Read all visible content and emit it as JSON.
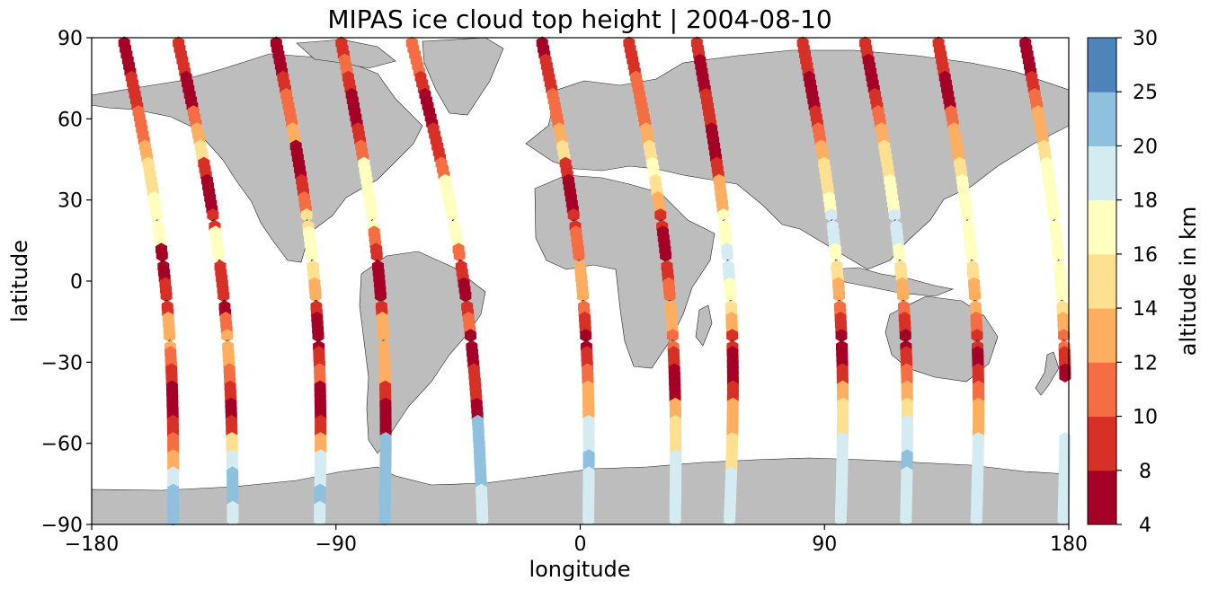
{
  "chart_data": {
    "type": "scatter",
    "title": "MIPAS ice cloud top height | 2004-08-10",
    "xlabel": "longitude",
    "ylabel": "latitude",
    "xlim": [
      -180,
      180
    ],
    "ylim": [
      -90,
      90
    ],
    "xticks": [
      -180,
      -90,
      0,
      90,
      180
    ],
    "yticks": [
      -90,
      -60,
      -30,
      0,
      30,
      60,
      90
    ],
    "grid": false,
    "land_color": "#bdbdbd",
    "colorbar": {
      "label": "altitude in km",
      "ticks": [
        4,
        8,
        10,
        12,
        14,
        16,
        18,
        20,
        25,
        30
      ],
      "bins": [
        {
          "from": 4,
          "to": 8,
          "color": "#a50026"
        },
        {
          "from": 8,
          "to": 10,
          "color": "#d73027"
        },
        {
          "from": 10,
          "to": 12,
          "color": "#f46d43"
        },
        {
          "from": 12,
          "to": 14,
          "color": "#fdae61"
        },
        {
          "from": 14,
          "to": 16,
          "color": "#fee090"
        },
        {
          "from": 16,
          "to": 18,
          "color": "#ffffbf"
        },
        {
          "from": 18,
          "to": 20,
          "color": "#e0f3f8"
        },
        {
          "from": 20,
          "to": 25,
          "color": "#abd9e9"
        },
        {
          "from": 25,
          "to": 30,
          "color": "#74add1"
        }
      ],
      "bin_colors_display": [
        "#a50026",
        "#d73027",
        "#f46d43",
        "#fdae61",
        "#fee090",
        "#ffffbf",
        "#d4ebf2",
        "#8fc1de",
        "#4f84ba",
        "#313695"
      ]
    },
    "tracks": [
      {
        "lon_north": -168,
        "lon_south": -150,
        "profile": [
          7,
          7,
          9,
          9,
          11,
          11,
          13,
          15,
          15,
          16,
          16,
          16,
          7,
          7,
          9,
          9,
          13,
          13,
          11,
          9,
          7,
          7,
          9,
          11,
          13,
          19,
          21,
          21
        ]
      },
      {
        "lon_north": -148,
        "lon_south": -128,
        "profile": [
          9,
          9,
          7,
          7,
          11,
          13,
          15,
          9,
          7,
          7,
          9,
          16,
          16,
          9,
          9,
          7,
          11,
          13,
          13,
          11,
          9,
          7,
          9,
          15,
          19,
          21,
          21,
          19
        ]
      },
      {
        "lon_north": -112,
        "lon_south": -96,
        "profile": [
          7,
          7,
          9,
          11,
          11,
          13,
          7,
          7,
          9,
          11,
          15,
          16,
          16,
          15,
          13,
          9,
          7,
          7,
          9,
          11,
          7,
          7,
          9,
          13,
          19,
          19,
          21,
          19
        ]
      },
      {
        "lon_north": -88,
        "lon_south": -72,
        "profile": [
          9,
          11,
          9,
          7,
          7,
          9,
          11,
          16,
          16,
          16,
          16,
          11,
          9,
          7,
          7,
          9,
          13,
          13,
          13,
          13,
          9,
          7,
          7,
          21,
          23,
          23,
          21,
          21
        ]
      },
      {
        "lon_north": -62,
        "lon_south": -36,
        "profile": [
          11,
          11,
          9,
          7,
          7,
          9,
          9,
          11,
          16,
          16,
          16,
          16,
          11,
          9,
          7,
          9,
          11,
          7,
          7,
          9,
          9,
          7,
          21,
          23,
          23,
          21,
          19,
          19
        ]
      },
      {
        "lon_north": -14,
        "lon_south": 3,
        "profile": [
          7,
          9,
          9,
          11,
          11,
          13,
          15,
          9,
          7,
          7,
          9,
          11,
          11,
          13,
          13,
          11,
          9,
          7,
          9,
          11,
          13,
          13,
          19,
          19,
          21,
          19,
          19,
          19
        ]
      },
      {
        "lon_north": 18,
        "lon_south": 35,
        "profile": [
          9,
          9,
          11,
          11,
          11,
          13,
          15,
          16,
          15,
          13,
          9,
          7,
          7,
          9,
          11,
          13,
          13,
          11,
          9,
          7,
          7,
          13,
          15,
          15,
          19,
          19,
          19,
          19
        ]
      },
      {
        "lon_north": 43,
        "lon_south": 55,
        "profile": [
          9,
          7,
          7,
          9,
          9,
          7,
          7,
          9,
          13,
          13,
          16,
          16,
          19,
          19,
          16,
          15,
          13,
          9,
          7,
          7,
          9,
          13,
          13,
          15,
          15,
          19,
          19,
          19
        ]
      },
      {
        "lon_north": 82,
        "lon_south": 96,
        "profile": [
          9,
          9,
          7,
          7,
          9,
          11,
          13,
          15,
          15,
          16,
          19,
          19,
          16,
          15,
          13,
          11,
          9,
          7,
          7,
          9,
          13,
          15,
          15,
          19,
          19,
          19,
          19,
          19
        ]
      },
      {
        "lon_north": 105,
        "lon_south": 120,
        "profile": [
          9,
          7,
          7,
          9,
          11,
          13,
          15,
          15,
          16,
          16,
          19,
          19,
          16,
          15,
          13,
          11,
          9,
          7,
          9,
          11,
          13,
          15,
          19,
          19,
          21,
          19,
          19,
          19
        ]
      },
      {
        "lon_north": 132,
        "lon_south": 146,
        "profile": [
          9,
          9,
          7,
          7,
          11,
          13,
          13,
          15,
          16,
          16,
          16,
          16,
          16,
          15,
          13,
          13,
          11,
          9,
          7,
          9,
          11,
          13,
          13,
          19,
          19,
          19,
          19,
          19
        ]
      },
      {
        "lon_north": 164,
        "lon_south": 178,
        "profile": [
          7,
          7,
          9,
          11,
          13,
          13,
          15,
          16,
          16,
          16,
          16,
          16,
          16,
          16,
          16,
          15,
          13,
          11,
          9,
          7,
          9,
          11,
          13,
          19,
          19,
          19,
          19,
          19
        ]
      }
    ]
  }
}
